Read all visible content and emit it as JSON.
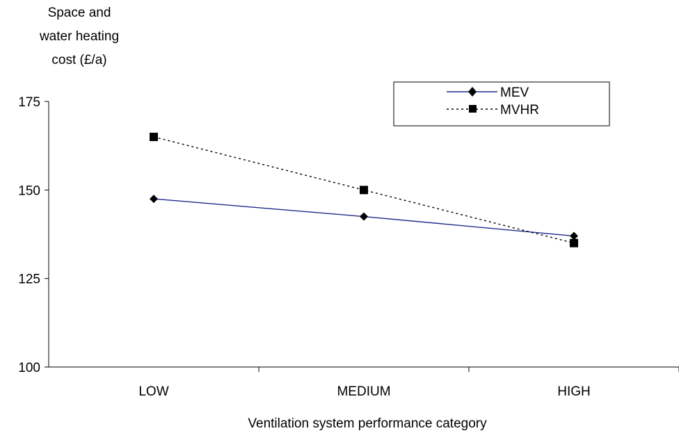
{
  "chart_data": {
    "type": "line",
    "title": "",
    "ylabel_lines": [
      "Space and",
      "water heating",
      "cost (£/a)"
    ],
    "xlabel": "Ventilation system performance category",
    "categories": [
      "LOW",
      "MEDIUM",
      "HIGH"
    ],
    "ylim": [
      100,
      175
    ],
    "yticks": [
      100,
      125,
      150,
      175
    ],
    "grid": false,
    "legend_position": "top-right",
    "series": [
      {
        "name": "MEV",
        "values": [
          147.5,
          142.5,
          137
        ],
        "color": "#1f2a8c",
        "line_style": "solid",
        "marker": "diamond"
      },
      {
        "name": "MVHR",
        "values": [
          165,
          150,
          135
        ],
        "color": "#000000",
        "line_style": "dotted",
        "marker": "square"
      }
    ]
  }
}
